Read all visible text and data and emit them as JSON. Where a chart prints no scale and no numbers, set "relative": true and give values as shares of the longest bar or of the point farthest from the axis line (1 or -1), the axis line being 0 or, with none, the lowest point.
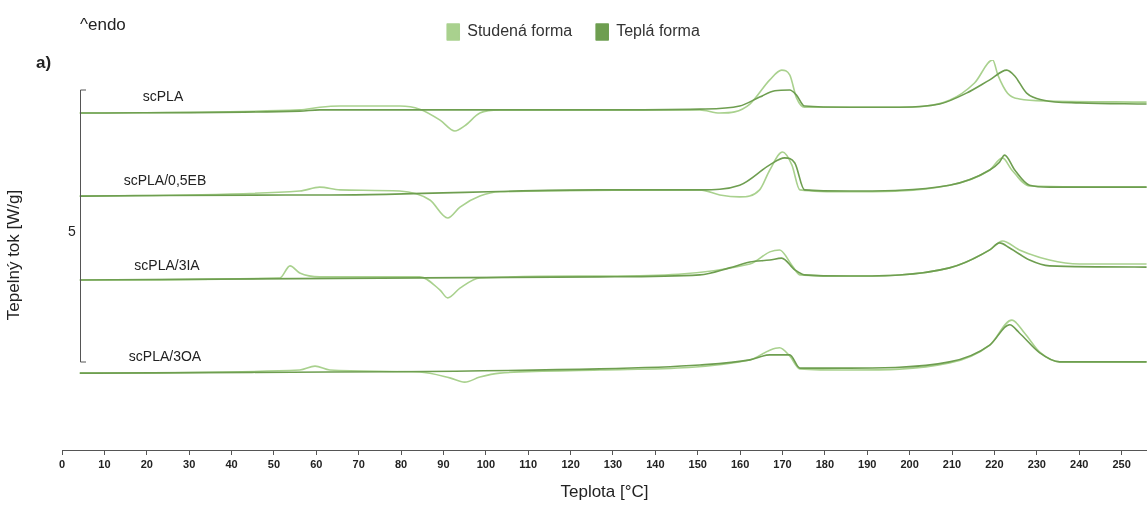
{
  "chart_data": {
    "type": "line",
    "relative": true,
    "xlabel": "Teplota [°C]",
    "ylabel": "Tepelný tok [W/g]",
    "legend": "top",
    "marker": "none",
    "line_style": "solid",
    "grid": false,
    "xlim": [
      0,
      256
    ],
    "xticks": [
      0,
      10,
      20,
      30,
      40,
      50,
      60,
      70,
      80,
      90,
      100,
      110,
      120,
      130,
      140,
      150,
      160,
      170,
      180,
      190,
      200,
      210,
      220,
      230,
      240,
      250
    ],
    "annotations": [
      "^endo",
      "a)",
      "5",
      "scPLA",
      "scPLA/0,5EB",
      "scPLA/3IA",
      "scPLA/3OA"
    ],
    "series": [
      {
        "name": "Studená forma",
        "color": "#a9d18e",
        "x": [
          4.2,
          56.1,
          60.8,
          65.6,
          79.7,
          84.4,
          89.2,
          92.7,
          95.0,
          98.6,
          103.3,
          150.5,
          155.2,
          158.7,
          162.3,
          167.0,
          169.8,
          171.7,
          173.3,
          175.2,
          185.8,
          197.6,
          209.4,
          215.3,
          219.6,
          220.8,
          223.1,
          225.9,
          233.0,
          255.9
        ],
        "values": [
          0.864,
          0.872,
          0.879,
          0.882,
          0.882,
          0.874,
          0.846,
          0.818,
          0.831,
          0.864,
          0.872,
          0.872,
          0.864,
          0.867,
          0.887,
          0.949,
          0.974,
          0.962,
          0.903,
          0.879,
          0.879,
          0.879,
          0.897,
          0.941,
          1.0,
          0.962,
          0.915,
          0.9,
          0.895,
          0.892
        ]
      },
      {
        "name": "Teplá forma",
        "color": "#6e9e50",
        "x": [
          4.2,
          56.1,
          60.8,
          126.9,
          150.5,
          159.9,
          164.6,
          168.2,
          171.7,
          173.3,
          175.2,
          185.8,
          197.6,
          207.1,
          213.4,
          218.9,
          222.9,
          224.8,
          227.6,
          231.6,
          240.1,
          255.9
        ],
        "values": [
          0.864,
          0.869,
          0.872,
          0.872,
          0.874,
          0.882,
          0.905,
          0.921,
          0.923,
          0.91,
          0.882,
          0.879,
          0.879,
          0.887,
          0.915,
          0.949,
          0.974,
          0.959,
          0.915,
          0.897,
          0.89,
          0.887
        ]
      },
      {
        "color": "#a9d18e",
        "x": [
          4.2,
          56.1,
          60.8,
          65.6,
          79.7,
          86.8,
          91.0,
          93.9,
          98.6,
          103.3,
          150.5,
          155.2,
          159.9,
          164.6,
          167.0,
          170.0,
          172.2,
          174.1,
          185.8,
          209.4,
          218.9,
          221.9,
          224.1,
          228.3,
          255.9
        ],
        "values": [
          0.651,
          0.664,
          0.674,
          0.667,
          0.664,
          0.641,
          0.595,
          0.623,
          0.651,
          0.662,
          0.667,
          0.654,
          0.649,
          0.667,
          0.718,
          0.764,
          0.731,
          0.667,
          0.662,
          0.679,
          0.718,
          0.749,
          0.718,
          0.677,
          0.674
        ]
      },
      {
        "color": "#6e9e50",
        "x": [
          4.2,
          56.1,
          63.2,
          126.9,
          150.5,
          159.9,
          167.0,
          170.5,
          172.9,
          175.2,
          185.8,
          209.4,
          218.9,
          221.2,
          222.4,
          224.8,
          228.3,
          233.0,
          255.9
        ],
        "values": [
          0.651,
          0.654,
          0.654,
          0.667,
          0.667,
          0.679,
          0.731,
          0.749,
          0.736,
          0.667,
          0.664,
          0.679,
          0.718,
          0.738,
          0.756,
          0.718,
          0.679,
          0.674,
          0.674
        ]
      },
      {
        "color": "#a9d18e",
        "x": [
          4.2,
          51.4,
          53.8,
          56.1,
          60.8,
          84.4,
          89.2,
          91.0,
          93.9,
          98.6,
          126.9,
          162.3,
          167.0,
          169.3,
          172.2,
          174.1,
          185.8,
          209.4,
          218.9,
          221.9,
          225.9,
          233.0,
          240.1,
          255.9
        ],
        "values": [
          0.436,
          0.441,
          0.472,
          0.454,
          0.444,
          0.444,
          0.41,
          0.39,
          0.415,
          0.441,
          0.446,
          0.477,
          0.508,
          0.513,
          0.474,
          0.449,
          0.446,
          0.467,
          0.513,
          0.536,
          0.513,
          0.487,
          0.477,
          0.477
        ]
      },
      {
        "color": "#6e9e50",
        "x": [
          4.2,
          126.9,
          150.5,
          157.5,
          162.3,
          167.0,
          169.8,
          172.9,
          175.2,
          185.8,
          209.4,
          218.9,
          221.2,
          223.6,
          228.3,
          233.0,
          255.9
        ],
        "values": [
          0.436,
          0.444,
          0.449,
          0.467,
          0.482,
          0.487,
          0.492,
          0.462,
          0.449,
          0.446,
          0.467,
          0.513,
          0.531,
          0.518,
          0.487,
          0.472,
          0.469
        ]
      },
      {
        "color": "#a9d18e",
        "x": [
          4.2,
          56.1,
          59.7,
          63.2,
          84.4,
          91.5,
          95.0,
          98.6,
          103.3,
          126.9,
          162.3,
          167.0,
          169.3,
          171.7,
          174.1,
          185.8,
          209.4,
          218.9,
          224.1,
          227.1,
          230.7,
          235.4,
          255.9
        ],
        "values": [
          0.197,
          0.205,
          0.215,
          0.205,
          0.2,
          0.185,
          0.174,
          0.187,
          0.197,
          0.205,
          0.231,
          0.256,
          0.262,
          0.241,
          0.208,
          0.205,
          0.223,
          0.269,
          0.333,
          0.3,
          0.251,
          0.226,
          0.226
        ]
      },
      {
        "color": "#6e9e50",
        "x": [
          4.2,
          126.9,
          150.5,
          162.3,
          167.0,
          171.7,
          174.1,
          185.8,
          209.4,
          218.9,
          223.6,
          225.9,
          230.7,
          235.4,
          255.9
        ],
        "values": [
          0.197,
          0.208,
          0.218,
          0.231,
          0.244,
          0.244,
          0.21,
          0.21,
          0.226,
          0.269,
          0.321,
          0.3,
          0.249,
          0.226,
          0.226
        ]
      }
    ]
  }
}
